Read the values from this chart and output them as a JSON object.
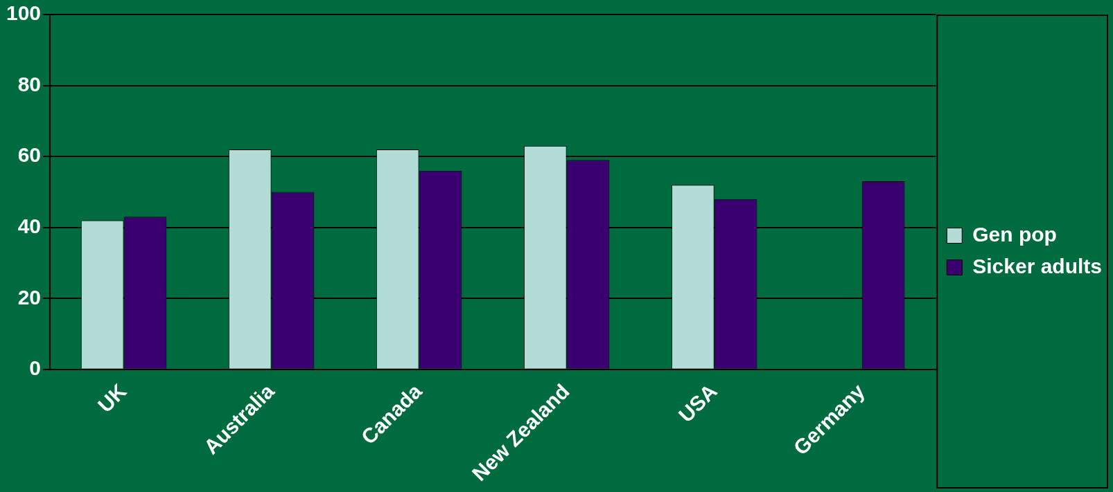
{
  "chart_data": {
    "type": "bar",
    "categories": [
      "UK",
      "Australia",
      "Canada",
      "New Zealand",
      "USA",
      "Germany"
    ],
    "series": [
      {
        "name": "Gen pop",
        "color": "#b3dcd6",
        "values": [
          42,
          62,
          62,
          63,
          52,
          null
        ]
      },
      {
        "name": "Sicker adults",
        "color": "#3a0070",
        "values": [
          43,
          50,
          56,
          59,
          48,
          53
        ]
      }
    ],
    "ylim": [
      0,
      100
    ],
    "yticks": [
      0,
      20,
      40,
      60,
      80,
      100
    ],
    "grid": "y",
    "legend": "right"
  }
}
